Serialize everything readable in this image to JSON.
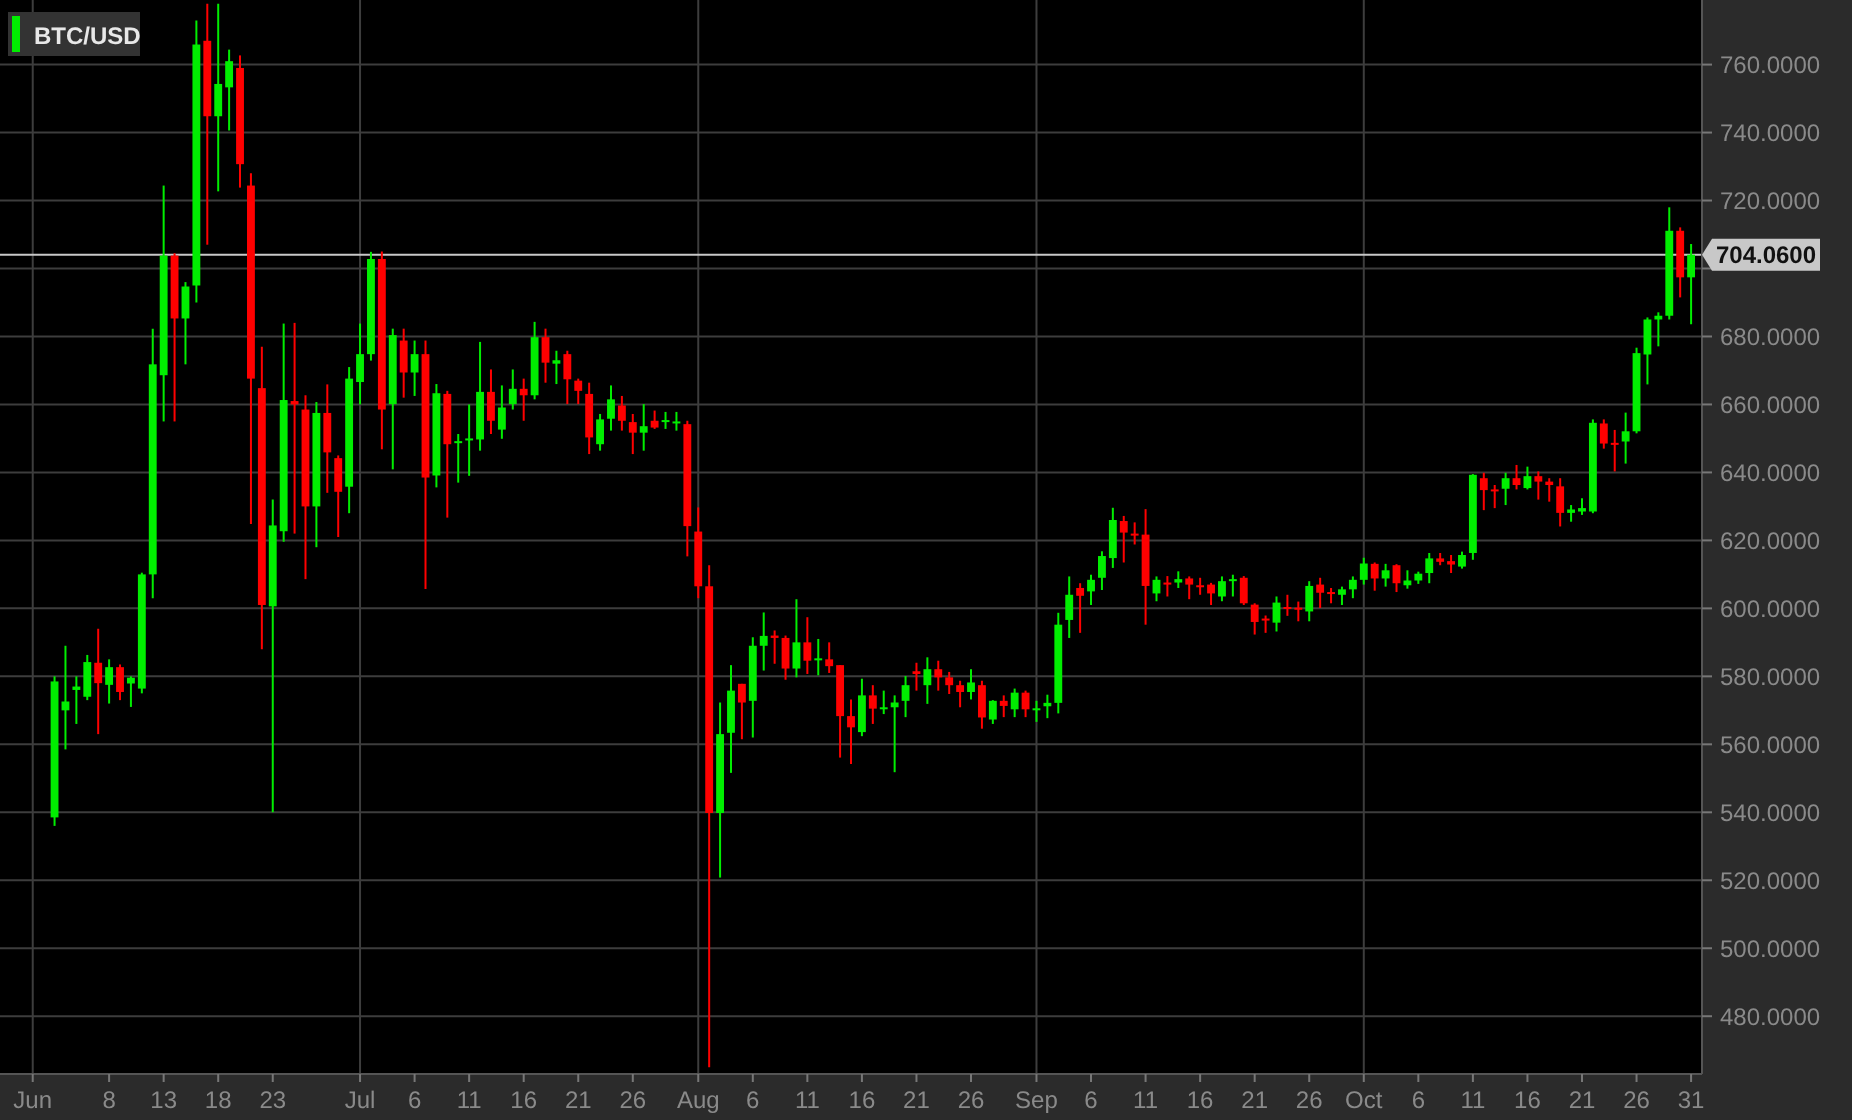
{
  "chart_data": {
    "type": "candlestick",
    "title": "BTC/USD",
    "colors": [
      "#00ee00",
      "#00ee00",
      "#00ee00",
      "#00ee00",
      "#ff0000",
      "#00ee00",
      "#ff0000",
      "#00ee00",
      "#00ee00",
      "#00ee00",
      "#00ee00",
      "#ff0000",
      "#00ee00",
      "#00ee00",
      "#ff0000",
      "#00ee00",
      "#00ee00",
      "#ff0000",
      "#ff0000",
      "#ff0000",
      "#00ee00",
      "#00ee00",
      "#ff0000",
      "#ff0000",
      "#00ee00",
      "#ff0000",
      "#ff0000",
      "#00ee00",
      "#00ee00",
      "#00ee00",
      "#ff0000",
      "#00ee00",
      "#ff0000",
      "#00ee00",
      "#ff0000",
      "#00ee00",
      "#ff0000",
      "#00ee00",
      "#00ee00",
      "#00ee00",
      "#ff0000",
      "#00ee00",
      "#00ee00",
      "#ff0000",
      "#00ee00",
      "#ff0000",
      "#00ee00",
      "#ff0000",
      "#ff0000",
      "#ff0000",
      "#00ee00",
      "#00ee00",
      "#ff0000",
      "#ff0000",
      "#00ee00",
      "#ff0000",
      "#00ee00",
      "#00ee00",
      "#ff0000",
      "#ff0000",
      "#ff0000",
      "#00ee00",
      "#00ee00",
      "#ff0000",
      "#00ee00",
      "#00ee00",
      "#ff0000",
      "#ff0000",
      "#00ee00",
      "#ff0000",
      "#00ee00",
      "#ff0000",
      "#ff0000",
      "#ff0000",
      "#00ee00",
      "#ff0000",
      "#00ee00",
      "#00ee00",
      "#00ee00",
      "#ff0000",
      "#00ee00",
      "#ff0000",
      "#ff0000",
      "#ff0000",
      "#00ee00",
      "#ff0000",
      "#00ee00",
      "#ff0000",
      "#00ee00",
      "#ff0000",
      "#00ee00",
      "#00ee00",
      "#00ee00",
      "#00ee00",
      "#ff0000",
      "#00ee00",
      "#00ee00",
      "#00ee00",
      "#ff0000",
      "#ff0000",
      "#ff0000",
      "#00ee00",
      "#ff0000",
      "#00ee00",
      "#ff0000",
      "#ff0000",
      "#ff0000",
      "#00ee00",
      "#00ee00",
      "#ff0000",
      "#ff0000",
      "#ff0000",
      "#00ee00",
      "#ff0000",
      "#ff0000",
      "#00ee00",
      "#ff0000",
      "#ff0000",
      "#00ee00",
      "#00ee00",
      "#00ee00",
      "#ff0000",
      "#00ee00",
      "#ff0000",
      "#00ee00",
      "#00ee00",
      "#00ee00",
      "#ff0000",
      "#ff0000",
      "#00ee00",
      "#00ee00",
      "#ff0000",
      "#ff0000",
      "#00ee00",
      "#ff0000",
      "#00ee00",
      "#ff0000",
      "#ff0000",
      "#ff0000",
      "#00ee00",
      "#00ee00",
      "#00ee00",
      "#ff0000",
      "#ff0000",
      "#00ee00",
      "#00ee00",
      "#00ee00",
      "#00ee00",
      "#00ee00",
      "#ff0000",
      "#00ee00"
    ],
    "grid": true,
    "xlim": [
      "--05-29",
      "--11-01"
    ],
    "xticks": [
      {
        "value": "--06-01",
        "label": "Jun"
      },
      {
        "value": "--06-08",
        "label": "8"
      },
      {
        "value": "--06-13",
        "label": "13"
      },
      {
        "value": "--06-18",
        "label": "18"
      },
      {
        "value": "--06-23",
        "label": "23"
      },
      {
        "value": "--07-01",
        "label": "Jul"
      },
      {
        "value": "--07-06",
        "label": "6"
      },
      {
        "value": "--07-11",
        "label": "11"
      },
      {
        "value": "--07-16",
        "label": "16"
      },
      {
        "value": "--07-21",
        "label": "21"
      },
      {
        "value": "--07-26",
        "label": "26"
      },
      {
        "value": "--08-01",
        "label": "Aug"
      },
      {
        "value": "--08-06",
        "label": "6"
      },
      {
        "value": "--08-11",
        "label": "11"
      },
      {
        "value": "--08-16",
        "label": "16"
      },
      {
        "value": "--08-21",
        "label": "21"
      },
      {
        "value": "--08-26",
        "label": "26"
      },
      {
        "value": "--09-01",
        "label": "Sep"
      },
      {
        "value": "--09-06",
        "label": "6"
      },
      {
        "value": "--09-11",
        "label": "11"
      },
      {
        "value": "--09-16",
        "label": "16"
      },
      {
        "value": "--09-21",
        "label": "21"
      },
      {
        "value": "--09-26",
        "label": "26"
      },
      {
        "value": "--10-01",
        "label": "Oct"
      },
      {
        "value": "--10-06",
        "label": "6"
      },
      {
        "value": "--10-11",
        "label": "11"
      },
      {
        "value": "--10-16",
        "label": "16"
      },
      {
        "value": "--10-21",
        "label": "21"
      },
      {
        "value": "--10-26",
        "label": "26"
      },
      {
        "value": "--10-31",
        "label": "31"
      }
    ],
    "ylim": [
      463,
      779
    ],
    "yticks": [
      {
        "value": 480,
        "label": "480.0000"
      },
      {
        "value": 500,
        "label": "500.0000"
      },
      {
        "value": 520,
        "label": "520.0000"
      },
      {
        "value": 540,
        "label": "540.0000"
      },
      {
        "value": 560,
        "label": "560.0000"
      },
      {
        "value": 580,
        "label": "580.0000"
      },
      {
        "value": 600,
        "label": "600.0000"
      },
      {
        "value": 620,
        "label": "620.0000"
      },
      {
        "value": 640,
        "label": "640.0000"
      },
      {
        "value": 660,
        "label": "660.0000"
      },
      {
        "value": 680,
        "label": "680.0000"
      },
      {
        "value": 700,
        "label": null
      },
      {
        "value": 720,
        "label": "720.0000"
      },
      {
        "value": 740,
        "label": "740.0000"
      },
      {
        "value": 760,
        "label": "760.0000"
      }
    ],
    "ref_lines": [
      {
        "axis": "y",
        "value": 704.06,
        "label": "704.0600",
        "color": "#c8c8c8"
      }
    ],
    "x": [
      "--06-03",
      "--06-04",
      "--06-05",
      "--06-06",
      "--06-07",
      "--06-08",
      "--06-09",
      "--06-10",
      "--06-11",
      "--06-12",
      "--06-13",
      "--06-14",
      "--06-15",
      "--06-16",
      "--06-17",
      "--06-18",
      "--06-19",
      "--06-20",
      "--06-21",
      "--06-22",
      "--06-23",
      "--06-24",
      "--06-25",
      "--06-26",
      "--06-27",
      "--06-28",
      "--06-29",
      "--06-30",
      "--07-01",
      "--07-02",
      "--07-03",
      "--07-04",
      "--07-05",
      "--07-06",
      "--07-07",
      "--07-08",
      "--07-09",
      "--07-10",
      "--07-11",
      "--07-12",
      "--07-13",
      "--07-14",
      "--07-15",
      "--07-16",
      "--07-17",
      "--07-18",
      "--07-19",
      "--07-20",
      "--07-21",
      "--07-22",
      "--07-23",
      "--07-24",
      "--07-25",
      "--07-26",
      "--07-27",
      "--07-28",
      "--07-29",
      "--07-30",
      "--07-31",
      "--08-01",
      "--08-02",
      "--08-03",
      "--08-04",
      "--08-05",
      "--08-06",
      "--08-07",
      "--08-08",
      "--08-09",
      "--08-10",
      "--08-11",
      "--08-12",
      "--08-13",
      "--08-14",
      "--08-15",
      "--08-16",
      "--08-17",
      "--08-18",
      "--08-19",
      "--08-20",
      "--08-21",
      "--08-22",
      "--08-23",
      "--08-24",
      "--08-25",
      "--08-26",
      "--08-27",
      "--08-28",
      "--08-29",
      "--08-30",
      "--08-31",
      "--09-01",
      "--09-02",
      "--09-03",
      "--09-04",
      "--09-05",
      "--09-06",
      "--09-07",
      "--09-08",
      "--09-09",
      "--09-10",
      "--09-11",
      "--09-12",
      "--09-13",
      "--09-14",
      "--09-15",
      "--09-16",
      "--09-17",
      "--09-18",
      "--09-19",
      "--09-20",
      "--09-21",
      "--09-22",
      "--09-23",
      "--09-24",
      "--09-25",
      "--09-26",
      "--09-27",
      "--09-28",
      "--09-29",
      "--09-30",
      "--10-01",
      "--10-02",
      "--10-03",
      "--10-04",
      "--10-05",
      "--10-06",
      "--10-07",
      "--10-08",
      "--10-09",
      "--10-10",
      "--10-11",
      "--10-12",
      "--10-13",
      "--10-14",
      "--10-15",
      "--10-16",
      "--10-17",
      "--10-18",
      "--10-19",
      "--10-20",
      "--10-21",
      "--10-22",
      "--10-23",
      "--10-24",
      "--10-25",
      "--10-26",
      "--10-27",
      "--10-28",
      "--10-29",
      "--10-30",
      "--10-31"
    ],
    "ohlc": [
      [
        538.5,
        580,
        536,
        578.5
      ],
      [
        570,
        589,
        558.5,
        572.6
      ],
      [
        576,
        580,
        566,
        577
      ],
      [
        574,
        586.3,
        573,
        584.2
      ],
      [
        584,
        594,
        563,
        578
      ],
      [
        577.5,
        585,
        572,
        582.7
      ],
      [
        582.7,
        583.5,
        573,
        575.4
      ],
      [
        577.9,
        580,
        571,
        579.6
      ],
      [
        576.4,
        610.5,
        575,
        610
      ],
      [
        610,
        682.3,
        603,
        671.8
      ],
      [
        668.6,
        724.4,
        655,
        703.8
      ],
      [
        703.8,
        704.5,
        655,
        685.3
      ],
      [
        685.3,
        696,
        671.8,
        694.7
      ],
      [
        695,
        773,
        690,
        765.9
      ],
      [
        767,
        777.9,
        707,
        744.8
      ],
      [
        744.8,
        777.9,
        722.7,
        754.3
      ],
      [
        753.3,
        764.4,
        740.6,
        761
      ],
      [
        759,
        762.7,
        723.8,
        730.7
      ],
      [
        724.4,
        728,
        624.8,
        667.6
      ],
      [
        664.8,
        677,
        588,
        601
      ],
      [
        600.6,
        632,
        540,
        624.4
      ],
      [
        622.7,
        683.8,
        619.6,
        661.3
      ],
      [
        661,
        684,
        622,
        660
      ],
      [
        658.5,
        662.7,
        608.6,
        630
      ],
      [
        630,
        660.7,
        618,
        657.5
      ],
      [
        657.5,
        665.9,
        634,
        645.9
      ],
      [
        644.2,
        645,
        621,
        634.3
      ],
      [
        635.8,
        671,
        628,
        667.6
      ],
      [
        666.6,
        683.8,
        660,
        674.8
      ],
      [
        674.8,
        704.9,
        672.9,
        702.8
      ],
      [
        702.8,
        705,
        646.8,
        658.5
      ],
      [
        660.1,
        682.3,
        640.9,
        680.4
      ],
      [
        678.8,
        682.3,
        662,
        669.4
      ],
      [
        669.4,
        678.8,
        662.5,
        674.8
      ],
      [
        674.8,
        678.8,
        605.7,
        638.5
      ],
      [
        639.1,
        666,
        635.6,
        663.3
      ],
      [
        663.1,
        664,
        626.7,
        648.3
      ],
      [
        648.9,
        651.3,
        637,
        649.2
      ],
      [
        649.5,
        660,
        639,
        650
      ],
      [
        649.7,
        678.4,
        646.4,
        663.7
      ],
      [
        663.7,
        670.3,
        651.3,
        655.2
      ],
      [
        652.6,
        665.6,
        649.9,
        659.1
      ],
      [
        660.1,
        670.3,
        658.5,
        664.6
      ],
      [
        664.6,
        667.6,
        655.2,
        662.7
      ],
      [
        662.7,
        684.3,
        661.5,
        679.8
      ],
      [
        679.8,
        682.3,
        666.4,
        672.3
      ],
      [
        672,
        675.8,
        666,
        673
      ],
      [
        674.8,
        675.8,
        660.1,
        667.4
      ],
      [
        667,
        667.6,
        660.1,
        664
      ],
      [
        663.1,
        666.4,
        645.4,
        650.3
      ],
      [
        648.3,
        657.2,
        646.4,
        655.6
      ],
      [
        655.8,
        665.6,
        652.3,
        661.5
      ],
      [
        659.7,
        662.5,
        652.3,
        655.2
      ],
      [
        654.8,
        657.2,
        645.4,
        651.7
      ],
      [
        651.7,
        660.1,
        646.4,
        653.6
      ],
      [
        655.2,
        658.2,
        652.8,
        653.2
      ],
      [
        655,
        657.8,
        652.8,
        655.4
      ],
      [
        654.6,
        657.8,
        652.3,
        655
      ],
      [
        654.2,
        655.2,
        615.3,
        624.2
      ],
      [
        622.6,
        629.7,
        603,
        606.5
      ],
      [
        606.5,
        612.7,
        465,
        539.8
      ],
      [
        539.8,
        572.3,
        520.8,
        563
      ],
      [
        563.4,
        583.3,
        551.6,
        575.8
      ],
      [
        577.8,
        577.8,
        561.5,
        572.3
      ],
      [
        572.8,
        591.5,
        562,
        589
      ],
      [
        589,
        598.8,
        581.7,
        591.9
      ],
      [
        592,
        593.5,
        583.7,
        591.3
      ],
      [
        591.3,
        592,
        579,
        582.3
      ],
      [
        582.3,
        602.7,
        579.7,
        590
      ],
      [
        590,
        597.4,
        580.7,
        584.6
      ],
      [
        585,
        591,
        580.3,
        585.3
      ],
      [
        585,
        590,
        581,
        583
      ],
      [
        583.3,
        583.3,
        556.1,
        568.3
      ],
      [
        568.3,
        573.2,
        554.2,
        565
      ],
      [
        563.6,
        579.3,
        562.4,
        574.4
      ],
      [
        574.4,
        577.4,
        566,
        570.5
      ],
      [
        570.6,
        575.8,
        568.9,
        570.9
      ],
      [
        570.9,
        574.4,
        551.8,
        572.3
      ],
      [
        572.8,
        580.1,
        568,
        577.4
      ],
      [
        581.5,
        584,
        575.8,
        580.7
      ],
      [
        577.4,
        585.6,
        571.9,
        582.1
      ],
      [
        582.1,
        584.6,
        575.8,
        579.7
      ],
      [
        579.7,
        581.3,
        574.8,
        577.4
      ],
      [
        577.4,
        578.7,
        570.9,
        575.4
      ],
      [
        575.4,
        582.1,
        573.2,
        578.2
      ],
      [
        577.4,
        578.7,
        564.6,
        567.9
      ],
      [
        567.3,
        573,
        566,
        572.8
      ],
      [
        572.8,
        574.4,
        568,
        571.3
      ],
      [
        570.3,
        576.4,
        568,
        575.2
      ],
      [
        575.2,
        575.8,
        568,
        570.3
      ],
      [
        570.3,
        572.8,
        566.6,
        570.6
      ],
      [
        571.2,
        574.6,
        567.7,
        572.2
      ],
      [
        572.2,
        598.7,
        569.1,
        595.2
      ],
      [
        596.6,
        609.4,
        591.3,
        604
      ],
      [
        606,
        607.4,
        592.8,
        603.7
      ],
      [
        605,
        609.9,
        601,
        608.4
      ],
      [
        609,
        616.8,
        605.4,
        615.4
      ],
      [
        614.8,
        629.6,
        611.9,
        626
      ],
      [
        625.7,
        627.2,
        613.5,
        622.3
      ],
      [
        622,
        625.3,
        618.8,
        621.7
      ],
      [
        621.7,
        629.2,
        595.2,
        606.6
      ],
      [
        604.4,
        609.4,
        602.1,
        608.4
      ],
      [
        607.6,
        609.5,
        603.5,
        607
      ],
      [
        607.6,
        610.9,
        606,
        608.6
      ],
      [
        608.8,
        609.4,
        602.7,
        607
      ],
      [
        606.8,
        609,
        604,
        606.4
      ],
      [
        607,
        607.5,
        601,
        604.4
      ],
      [
        603.5,
        609.4,
        602.1,
        608
      ],
      [
        608.3,
        609.9,
        603.5,
        608.6
      ],
      [
        609,
        609.5,
        601,
        601.5
      ],
      [
        601.1,
        601.5,
        592.3,
        596
      ],
      [
        597,
        597.9,
        592.8,
        596.6
      ],
      [
        595.8,
        603.5,
        593.2,
        601.7
      ],
      [
        600.4,
        604,
        597.8,
        600
      ],
      [
        600.2,
        602,
        596.2,
        599.8
      ],
      [
        599.1,
        608,
        596.2,
        606.6
      ],
      [
        607,
        609,
        600.1,
        604.6
      ],
      [
        604.8,
        606,
        601.5,
        604.4
      ],
      [
        604,
        606.4,
        601,
        605.6
      ],
      [
        605.6,
        609.4,
        603,
        608.4
      ],
      [
        608.4,
        614.9,
        607,
        613.2
      ],
      [
        613.1,
        613.5,
        605.2,
        608.8
      ],
      [
        608.8,
        613.1,
        606.4,
        611.2
      ],
      [
        612.7,
        613,
        604.8,
        607.4
      ],
      [
        606.8,
        611.2,
        605.8,
        608.2
      ],
      [
        608.2,
        610.8,
        607.2,
        610.2
      ],
      [
        610.4,
        616.3,
        607.4,
        614.7
      ],
      [
        614.7,
        616.3,
        612.7,
        613.7
      ],
      [
        613.9,
        615.7,
        610.4,
        612.9
      ],
      [
        612.3,
        616.7,
        611.7,
        615.7
      ],
      [
        616.3,
        639.5,
        614.3,
        639.3
      ],
      [
        638.3,
        639.9,
        628.9,
        634.8
      ],
      [
        635,
        636.3,
        629.5,
        634.6
      ],
      [
        635.2,
        639.9,
        630.4,
        638.3
      ],
      [
        638.3,
        642.2,
        635,
        636.3
      ],
      [
        635.4,
        641.7,
        635,
        638.9
      ],
      [
        638.9,
        640.3,
        632,
        637.3
      ],
      [
        637.3,
        638.3,
        631.4,
        636.3
      ],
      [
        635.9,
        638.3,
        624.1,
        628.1
      ],
      [
        628.1,
        630.4,
        625.5,
        629.1
      ],
      [
        628.5,
        632.4,
        627.5,
        629.5
      ],
      [
        628.5,
        655.6,
        628,
        654.6
      ],
      [
        654.4,
        655.6,
        647,
        648.5
      ],
      [
        648.7,
        652.5,
        640.3,
        648.3
      ],
      [
        649.1,
        657.6,
        642.6,
        652.1
      ],
      [
        652.1,
        676.7,
        651.5,
        675.1
      ],
      [
        674.7,
        685.6,
        665.9,
        685
      ],
      [
        685,
        687.1,
        677.1,
        686.1
      ],
      [
        686.1,
        718,
        685,
        711.1
      ],
      [
        711.1,
        712.1,
        691.5,
        697.4
      ],
      [
        697.4,
        707.2,
        683.6,
        704.06
      ]
    ]
  }
}
